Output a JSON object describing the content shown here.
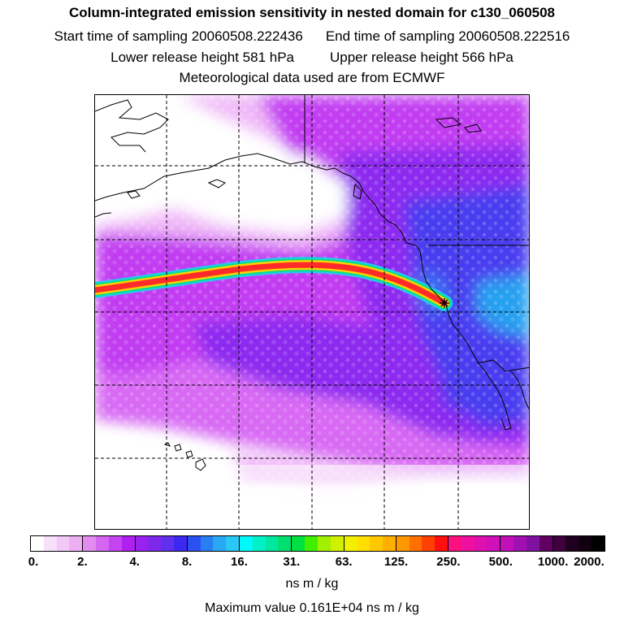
{
  "header": {
    "title": "Column-integrated emission sensitivity in nested domain for c130_060508",
    "start_label": "Start time of sampling 20060508.222436",
    "end_label": "End time of sampling 20060508.222516",
    "lower_label": "Lower release height  581 hPa",
    "upper_label": "Upper release height  566 hPa",
    "met_label": "Meteorological data used are from ECMWF"
  },
  "map": {
    "grid_lines": "dashed",
    "colors": {
      "light_background": "#f0b8f8",
      "magenta": "#c23cf2",
      "purple": "#8d2bf0",
      "blue": "#4a3cf0",
      "cyan": "#28a0f0",
      "plume_core": "#ff2a2a",
      "plume_edge": "#ffd000",
      "coastline": "#000000"
    },
    "release_marker": "release-point-marker"
  },
  "colorbar": {
    "tick_labels": [
      "0.",
      "2.",
      "4.",
      "8.",
      "16.",
      "31.",
      "63.",
      "125.",
      "250.",
      "500.",
      "1000.",
      "2000."
    ],
    "colors": [
      "#ffffff",
      "#f8e0fa",
      "#f2c8f6",
      "#ecb0f2",
      "#e28cf0",
      "#d466f2",
      "#c444f2",
      "#b020f0",
      "#9a22ee",
      "#7e28ec",
      "#6030ee",
      "#3c28f0",
      "#2a50f2",
      "#2a7ef4",
      "#2aa8f4",
      "#2ac8f4",
      "#00f8f8",
      "#00f0c8",
      "#00e8a0",
      "#00e070",
      "#00e040",
      "#40f000",
      "#a0f000",
      "#d0f000",
      "#f0f000",
      "#ffe000",
      "#ffc800",
      "#ffb000",
      "#ff9800",
      "#ff7000",
      "#ff4000",
      "#ff1010",
      "#ff1080",
      "#f010a0",
      "#e010b0",
      "#d010b8",
      "#c010b8",
      "#a010b0",
      "#8010a0",
      "#600060",
      "#400040",
      "#200020",
      "#100010",
      "#000000"
    ]
  },
  "units_label": "ns m / kg",
  "max_label": "Maximum value  0.161E+04 ns m / kg"
}
